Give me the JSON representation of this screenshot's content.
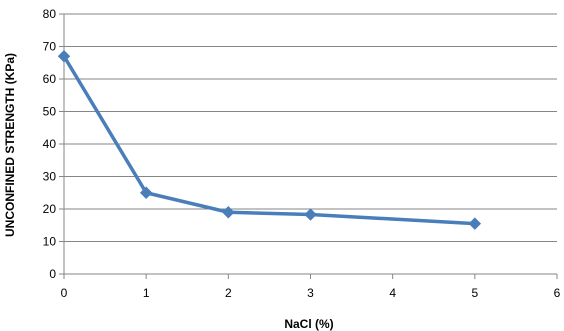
{
  "chart_data": {
    "type": "line",
    "title": "",
    "xlabel": "NaCl (%)",
    "ylabel": "UNCONFINED STRENGTH  (KPa)",
    "xlim": [
      0,
      6
    ],
    "ylim": [
      0,
      80
    ],
    "x_ticks": [
      "0",
      "1",
      "2",
      "3",
      "4",
      "5",
      "6"
    ],
    "y_ticks": [
      "0",
      "10",
      "20",
      "30",
      "40",
      "50",
      "60",
      "70",
      "80"
    ],
    "grid": "horizontal",
    "legend": "none",
    "colors": {
      "series": "#4a7ebb",
      "grid": "#868686",
      "axis": "#868686"
    },
    "series": [
      {
        "marker": "diamond",
        "x": [
          0,
          1,
          2,
          3,
          5
        ],
        "y": [
          67,
          25,
          19,
          18.3,
          15.5
        ]
      }
    ]
  }
}
